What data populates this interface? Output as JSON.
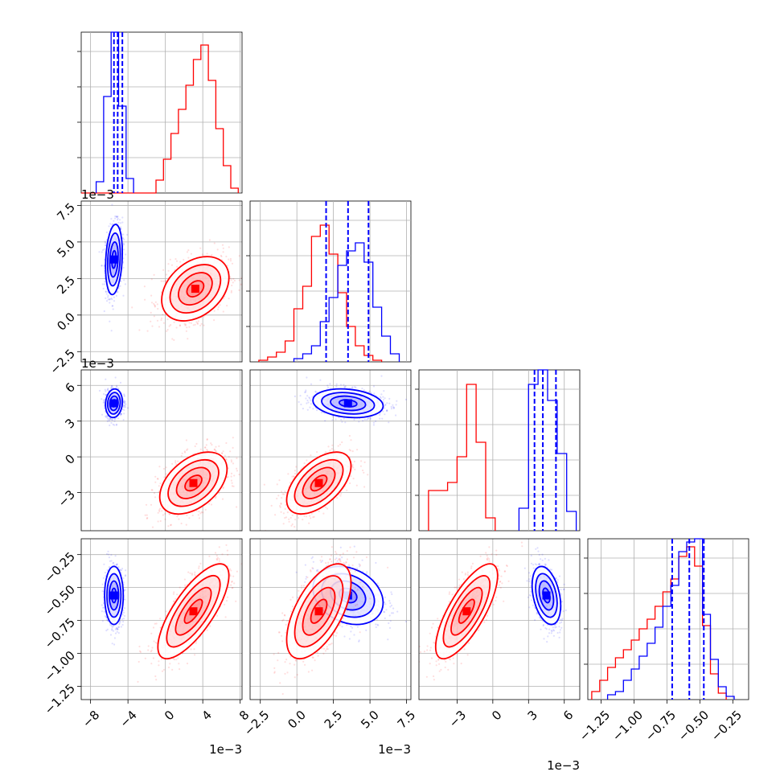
{
  "chart_data": {
    "type": "corner",
    "colors": {
      "red": "#ff0000",
      "blue": "#0000ff",
      "grid": "#b0b0b0"
    },
    "series": [
      {
        "color": "#ff0000"
      },
      {
        "color": "#0000ff"
      }
    ],
    "dimensions": [
      {
        "range": [
          -0.009,
          0.0082
        ],
        "ticks": [
          -0.008,
          -0.004,
          0,
          0.004,
          0.008
        ],
        "tick_labels": [
          "−8",
          "−4",
          "0",
          "4",
          "8"
        ],
        "multiplier": "1e−3",
        "quantiles": [
          -0.0055,
          -0.0051,
          -0.0046
        ]
      },
      {
        "range": [
          -0.0032,
          0.0078
        ],
        "ticks": [
          -0.0025,
          0,
          0.0025,
          0.005,
          0.0075
        ],
        "tick_labels": [
          "−2.5",
          "0.0",
          "2.5",
          "5.0",
          "7.5"
        ],
        "multiplier": "1e−3",
        "quantiles": [
          0.002,
          0.0035,
          0.0049
        ]
      },
      {
        "range": [
          -0.0062,
          0.0073
        ],
        "ticks": [
          -0.003,
          0,
          0.003,
          0.006
        ],
        "tick_labels": [
          "−3",
          "0",
          "3",
          "6"
        ],
        "multiplier": "1e−3",
        "quantiles": [
          0.0035,
          0.0042,
          0.0053
        ]
      },
      {
        "range": [
          -1.35,
          -0.13
        ],
        "ticks": [
          -1.25,
          -1.0,
          -0.75,
          -0.5,
          -0.25
        ],
        "tick_labels": [
          "−1.25",
          "−1.00",
          "−0.75",
          "−0.50",
          "−0.25"
        ],
        "multiplier": "",
        "quantiles": [
          -0.71,
          -0.58,
          -0.47
        ]
      }
    ],
    "histograms": [
      {
        "dim": 0,
        "series": [
          {
            "color": "#ff0000",
            "edges": [
              -0.009,
              -0.0082,
              -0.0074,
              -0.0066,
              -0.0058,
              -0.005,
              -0.0042,
              -0.0034,
              -0.0026,
              -0.0018,
              -0.001,
              -0.0002,
              0.0006,
              0.0014,
              0.0022,
              0.003,
              0.0038,
              0.0046,
              0.0054,
              0.0062,
              0.007,
              0.0078
            ],
            "counts": [
              0,
              0,
              0,
              0,
              0,
              0,
              0,
              0,
              0,
              0,
              0.08,
              0.21,
              0.37,
              0.52,
              0.67,
              0.83,
              0.92,
              0.7,
              0.4,
              0.17,
              0.03
            ]
          },
          {
            "color": "#0000ff",
            "edges": [
              -0.0074,
              -0.0066,
              -0.0058,
              -0.005,
              -0.0042,
              -0.0034
            ],
            "counts": [
              0.07,
              0.6,
              1.0,
              0.54,
              0.09
            ]
          }
        ]
      },
      {
        "dim": 1,
        "series": [
          {
            "color": "#ff0000",
            "edges": [
              -0.0026,
              -0.002,
              -0.0014,
              -0.0008,
              -0.0002,
              0.0004,
              0.001,
              0.0016,
              0.0022,
              0.0028,
              0.0034,
              0.004,
              0.0046,
              0.0052,
              0.0058
            ],
            "counts": [
              0.01,
              0.03,
              0.06,
              0.13,
              0.33,
              0.47,
              0.78,
              0.85,
              0.67,
              0.43,
              0.22,
              0.1,
              0.04,
              0.01
            ]
          },
          {
            "color": "#0000ff",
            "edges": [
              -0.0002,
              0.0004,
              0.001,
              0.0016,
              0.0022,
              0.0028,
              0.0034,
              0.004,
              0.0046,
              0.0052,
              0.0058,
              0.0064,
              0.007
            ],
            "counts": [
              0.02,
              0.05,
              0.1,
              0.25,
              0.4,
              0.6,
              0.69,
              0.74,
              0.62,
              0.34,
              0.16,
              0.05
            ]
          }
        ]
      },
      {
        "dim": 2,
        "series": [
          {
            "color": "#ff0000",
            "edges": [
              -0.0054,
              -0.0046,
              -0.0038,
              -0.003,
              -0.0022,
              -0.0014,
              -0.0006,
              0.0002
            ],
            "counts": [
              0.25,
              0.25,
              0.3,
              0.46,
              0.91,
              0.55,
              0.08
            ]
          },
          {
            "color": "#0000ff",
            "edges": [
              0.0022,
              0.003,
              0.0038,
              0.0046,
              0.0054,
              0.0062,
              0.007
            ],
            "counts": [
              0.14,
              0.91,
              1.0,
              0.81,
              0.48,
              0.12
            ]
          }
        ]
      },
      {
        "dim": 3,
        "series": [
          {
            "color": "#ff0000",
            "edges": [
              -1.32,
              -1.26,
              -1.2,
              -1.14,
              -1.08,
              -1.02,
              -0.96,
              -0.9,
              -0.84,
              -0.78,
              -0.72,
              -0.66,
              -0.6,
              -0.54,
              -0.48,
              -0.42,
              -0.36,
              -0.3
            ],
            "counts": [
              0.05,
              0.12,
              0.2,
              0.26,
              0.31,
              0.37,
              0.44,
              0.5,
              0.58,
              0.67,
              0.75,
              0.89,
              0.95,
              0.83,
              0.46,
              0.16,
              0.04
            ]
          },
          {
            "color": "#0000ff",
            "edges": [
              -1.2,
              -1.14,
              -1.08,
              -1.02,
              -0.96,
              -0.9,
              -0.84,
              -0.78,
              -0.72,
              -0.66,
              -0.6,
              -0.54,
              -0.48,
              -0.42,
              -0.36,
              -0.3,
              -0.24
            ],
            "counts": [
              0.03,
              0.05,
              0.12,
              0.19,
              0.27,
              0.35,
              0.45,
              0.58,
              0.71,
              0.92,
              0.98,
              1.0,
              0.53,
              0.25,
              0.08,
              0.02
            ]
          }
        ]
      }
    ],
    "pairs": [
      {
        "dims": [
          0,
          1
        ],
        "clusters": [
          {
            "color": "#0000ff",
            "center": [
              -0.0055,
              0.0038
            ],
            "sd": [
              0.00045,
              0.0012
            ],
            "rho": 0.2
          },
          {
            "color": "#ff0000",
            "center": [
              0.0032,
              0.0018
            ],
            "sd": [
              0.0018,
              0.0011
            ],
            "rho": 0.35
          }
        ]
      },
      {
        "dims": [
          0,
          2
        ],
        "clusters": [
          {
            "color": "#0000ff",
            "center": [
              -0.0055,
              0.0045
            ],
            "sd": [
              0.00045,
              0.0006
            ],
            "rho": 0.1
          },
          {
            "color": "#ff0000",
            "center": [
              0.003,
              -0.0022
            ],
            "sd": [
              0.0018,
              0.0013
            ],
            "rho": 0.45
          }
        ]
      },
      {
        "dims": [
          0,
          3
        ],
        "clusters": [
          {
            "color": "#0000ff",
            "center": [
              -0.0055,
              -0.56
            ],
            "sd": [
              0.0005,
              0.11
            ],
            "rho": 0.0
          },
          {
            "color": "#ff0000",
            "center": [
              0.003,
              -0.68
            ],
            "sd": [
              0.0019,
              0.18
            ],
            "rho": 0.75
          }
        ]
      },
      {
        "dims": [
          1,
          2
        ],
        "clusters": [
          {
            "color": "#0000ff",
            "center": [
              0.0035,
              0.0045
            ],
            "sd": [
              0.0012,
              0.0006
            ],
            "rho": -0.2
          },
          {
            "color": "#ff0000",
            "center": [
              0.0015,
              -0.0022
            ],
            "sd": [
              0.0011,
              0.0013
            ],
            "rho": 0.55
          }
        ]
      },
      {
        "dims": [
          1,
          3
        ],
        "clusters": [
          {
            "color": "#0000ff",
            "center": [
              0.0035,
              -0.56
            ],
            "sd": [
              0.0012,
              0.11
            ],
            "rho": -0.25
          },
          {
            "color": "#ff0000",
            "center": [
              0.0015,
              -0.68
            ],
            "sd": [
              0.0011,
              0.18
            ],
            "rho": 0.6
          }
        ]
      },
      {
        "dims": [
          2,
          3
        ],
        "clusters": [
          {
            "color": "#0000ff",
            "center": [
              0.0045,
              -0.56
            ],
            "sd": [
              0.0006,
              0.11
            ],
            "rho": -0.35
          },
          {
            "color": "#ff0000",
            "center": [
              -0.0022,
              -0.68
            ],
            "sd": [
              0.0013,
              0.18
            ],
            "rho": 0.75
          }
        ]
      }
    ]
  }
}
